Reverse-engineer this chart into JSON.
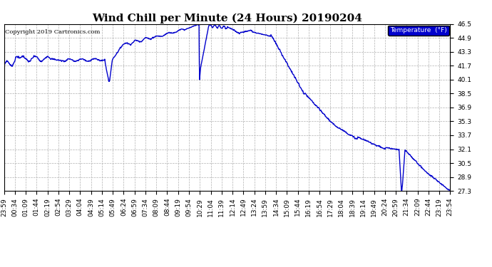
{
  "title": "Wind Chill per Minute (24 Hours) 20190204",
  "copyright_text": "Copyright 2019 Cartronics.com",
  "legend_label": "Temperature  (°F)",
  "legend_bg": "#0000cc",
  "legend_text_color": "#ffffff",
  "line_color": "#0000cc",
  "bg_color": "#ffffff",
  "plot_bg_color": "#ffffff",
  "grid_color": "#b0b0b0",
  "border_color": "#000000",
  "ylim": [
    27.3,
    46.5
  ],
  "yticks": [
    27.3,
    28.9,
    30.5,
    32.1,
    33.7,
    35.3,
    36.9,
    38.5,
    40.1,
    41.7,
    43.3,
    44.9,
    46.5
  ],
  "title_fontsize": 11,
  "tick_fontsize": 6.5,
  "line_width": 1.0,
  "x_labels": [
    "23:59",
    "00:34",
    "01:09",
    "01:44",
    "02:19",
    "02:54",
    "03:29",
    "04:04",
    "04:39",
    "05:14",
    "05:49",
    "06:24",
    "06:59",
    "07:34",
    "08:09",
    "08:44",
    "09:19",
    "09:54",
    "10:29",
    "11:04",
    "11:39",
    "12:14",
    "12:49",
    "13:24",
    "13:59",
    "14:34",
    "15:09",
    "15:44",
    "16:19",
    "16:54",
    "17:29",
    "18:04",
    "18:39",
    "19:14",
    "19:49",
    "20:24",
    "20:59",
    "21:34",
    "22:09",
    "22:44",
    "23:19",
    "23:54"
  ]
}
